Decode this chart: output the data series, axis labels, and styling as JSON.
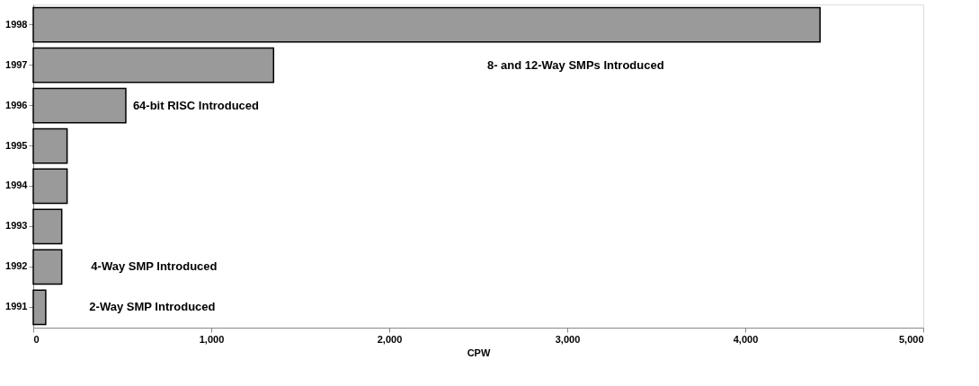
{
  "chart_data": {
    "type": "bar",
    "orientation": "horizontal",
    "xlabel": "CPW",
    "categories": [
      "1998",
      "1997",
      "1996",
      "1995",
      "1994",
      "1993",
      "1992",
      "1991"
    ],
    "values": [
      4420,
      1350,
      520,
      190,
      190,
      160,
      160,
      70
    ],
    "color": "#9a9a9a",
    "xlim": [
      0,
      5000
    ],
    "xticks": [
      {
        "value": 0,
        "label": "0"
      },
      {
        "value": 1000,
        "label": "1,000"
      },
      {
        "value": 2000,
        "label": "2,000"
      },
      {
        "value": 3000,
        "label": "3,000"
      },
      {
        "value": 4000,
        "label": "4,000"
      },
      {
        "value": 5000,
        "label": "5,000"
      }
    ],
    "grid": false,
    "annotations": [
      "8- and 12-Way SMPs Introduced",
      "64-bit RISC Introduced",
      "4-Way SMP Introduced",
      "2-Way SMP Introduced"
    ]
  }
}
